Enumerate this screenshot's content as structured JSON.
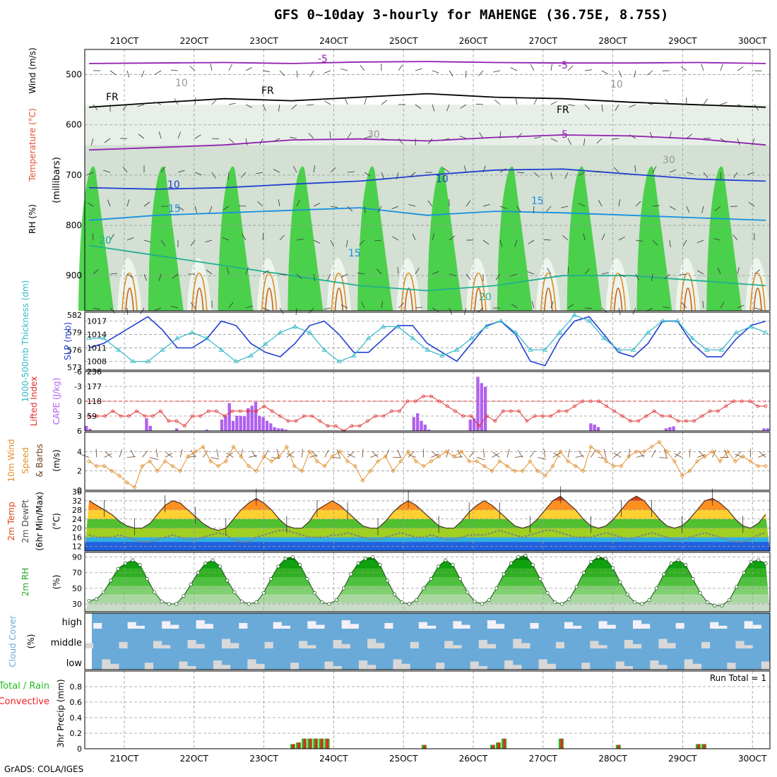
{
  "title": "GFS 0~10day 3-hourly for MAHENGE (36.75E, 8.75S)",
  "credit": "GrADS: COLA/IGES",
  "run_total_label": "Run Total = 1",
  "colors": {
    "rh_green": "#33cc33",
    "rh_light": "#c8d8c8",
    "slp": "#1f3fd0",
    "thickness": "#30b8c8",
    "lifted": "#e03030",
    "cape": "#b060f0",
    "wind": "#e09030",
    "temp_fill": "#ff8c00",
    "rh2m": "#22aa22",
    "cloud": "#6aaad8",
    "precip_total": "#22bb22",
    "precip_conv": "#ee2222"
  },
  "chart_data": [
    {
      "type": "heatmap",
      "name": "upper-air",
      "x_ticks": [
        "21OCT",
        "22OCT",
        "23OCT",
        "24OCT",
        "25OCT",
        "26OCT",
        "27OCT",
        "28OCT",
        "29OCT",
        "30OCT"
      ],
      "ylabel": "(millibars)",
      "side_labels": [
        "RH (%)",
        "Temperature (°C)",
        "Wind (m/s)"
      ],
      "ylim": [
        970,
        450
      ],
      "y_ticks": [
        500,
        600,
        700,
        800,
        900
      ],
      "contour_labels": [
        "-5",
        "-5",
        "FR",
        "FR",
        "FR",
        "-5",
        "10",
        "10",
        "15",
        "15",
        "20",
        "15",
        "10",
        "10",
        "30",
        "30",
        "20"
      ],
      "isotherms": [
        {
          "label": "-5",
          "p": [
            478,
            477,
            476,
            478,
            475,
            474,
            476,
            477,
            477,
            476,
            478
          ]
        },
        {
          "label": "FR",
          "p": [
            565,
            556,
            548,
            552,
            545,
            538,
            545,
            548,
            555,
            560,
            565
          ]
        },
        {
          "label": "-5",
          "p": [
            650,
            645,
            640,
            630,
            628,
            632,
            625,
            620,
            622,
            628,
            640
          ]
        },
        {
          "label": "10",
          "p": [
            725,
            728,
            725,
            718,
            712,
            700,
            690,
            688,
            698,
            708,
            712
          ]
        },
        {
          "label": "15",
          "p": [
            790,
            780,
            775,
            770,
            765,
            780,
            772,
            775,
            780,
            785,
            790
          ]
        },
        {
          "label": "20",
          "p": [
            840,
            860,
            880,
            900,
            920,
            930,
            920,
            900,
            900,
            910,
            920
          ]
        }
      ]
    },
    {
      "type": "line",
      "name": "thickness-slp",
      "side_labels": [
        "1000-500mb Thickness (dm)",
        "SLP (mb)"
      ],
      "left_ticks": [
        573,
        576,
        579,
        582
      ],
      "right_ticks": [
        1008,
        1011,
        1014,
        1017
      ],
      "left_ylim": [
        573,
        582
      ],
      "right_ylim": [
        1006,
        1019
      ],
      "series": [
        {
          "axis": "right",
          "values": [
            1011,
            1012,
            1014,
            1016,
            1018,
            1015,
            1011,
            1011,
            1013,
            1017,
            1016,
            1012,
            1010,
            1009,
            1012,
            1016,
            1017,
            1014,
            1010,
            1010,
            1013,
            1016,
            1016,
            1012,
            1010,
            1008,
            1012,
            1016,
            1017,
            1014,
            1008,
            1007,
            1013,
            1017,
            1018,
            1014,
            1010,
            1009,
            1012,
            1017,
            1017,
            1012,
            1009,
            1009,
            1013,
            1016,
            1017
          ]
        },
        {
          "axis": "left",
          "values": [
            578,
            578,
            576,
            574,
            574,
            576,
            578,
            579,
            578,
            576,
            574,
            575,
            577,
            579,
            580,
            579,
            576,
            574,
            575,
            578,
            580,
            580,
            578,
            576,
            575,
            576,
            578,
            580,
            581,
            579,
            576,
            576,
            579,
            582,
            581,
            578,
            576,
            576,
            579,
            581,
            581,
            578,
            576,
            576,
            579,
            580,
            579
          ]
        }
      ]
    },
    {
      "type": "bar",
      "name": "lifted-cape",
      "side_labels": [
        "Lifted Index",
        "CAPE (J/kg)"
      ],
      "left_ticks": [
        -6,
        -3,
        0,
        3,
        6
      ],
      "right_ticks": [
        59,
        118,
        177,
        236
      ],
      "left_ylim": [
        6,
        -6
      ],
      "right_ylim": [
        0,
        236
      ],
      "cape": [
        20,
        8,
        0,
        0,
        0,
        0,
        0,
        0,
        0,
        0,
        0,
        0,
        0,
        0,
        0,
        0,
        50,
        20,
        0,
        0,
        0,
        0,
        0,
        0,
        10,
        0,
        0,
        0,
        0,
        0,
        0,
        0,
        5,
        0,
        0,
        0,
        45,
        60,
        110,
        40,
        60,
        60,
        58,
        90,
        100,
        115,
        60,
        55,
        40,
        30,
        15,
        10,
        10,
        5,
        0,
        0,
        0,
        0,
        0,
        0,
        0,
        0,
        0,
        0,
        0,
        0,
        0,
        0,
        0,
        0,
        0,
        0,
        0,
        0,
        0,
        0,
        0,
        0,
        0,
        0,
        0,
        0,
        0,
        0,
        0,
        0,
        0,
        55,
        70,
        40,
        25,
        5,
        0,
        0,
        0,
        0,
        0,
        0,
        0,
        0,
        0,
        0,
        45,
        50,
        215,
        190,
        175,
        0,
        0,
        0,
        0,
        0,
        0,
        0,
        0,
        0,
        0,
        0,
        0,
        0,
        0,
        0,
        0,
        0,
        0,
        0,
        0,
        0,
        0,
        0,
        0,
        0,
        0,
        0,
        30,
        25,
        15,
        0,
        0,
        0,
        0,
        0,
        0,
        0,
        0,
        0,
        0,
        0,
        0,
        0,
        0,
        0,
        0,
        0,
        10,
        15,
        18,
        0,
        0,
        0,
        0,
        0,
        0,
        0,
        0,
        0,
        0,
        0,
        0,
        0,
        0,
        0,
        0,
        0,
        0,
        0,
        0,
        0,
        0,
        0,
        10,
        10
      ],
      "lifted": [
        3,
        3,
        3,
        2,
        3,
        3,
        2,
        3,
        3,
        2,
        4,
        4,
        5,
        3,
        3,
        2,
        2,
        3,
        2,
        2,
        2,
        2,
        1,
        2,
        3,
        4,
        4,
        3,
        3,
        4,
        5,
        5,
        6,
        5,
        5,
        4,
        3,
        3,
        2,
        2,
        0,
        0,
        -1,
        -1,
        0,
        1,
        2,
        3,
        3,
        5,
        3,
        4,
        2,
        2,
        2,
        4,
        3,
        3,
        3,
        2,
        2,
        1,
        0,
        0,
        0,
        1,
        2,
        3,
        4,
        4,
        3,
        2,
        3,
        3,
        4,
        4,
        4,
        3,
        2,
        2,
        1,
        0,
        0,
        0,
        1,
        1
      ]
    },
    {
      "type": "line",
      "name": "wind-10m",
      "side_labels": [
        "10m Wind",
        "Speed",
        "& Barbs"
      ],
      "ylabel": "(m/s)",
      "y_ticks": [
        0,
        2,
        4
      ],
      "ylim": [
        0,
        6
      ],
      "values": [
        3,
        2.5,
        2.5,
        2,
        1.5,
        0.8,
        0.3,
        2.5,
        3,
        2,
        3,
        2.5,
        2,
        3.5,
        4,
        4.5,
        3,
        2.5,
        3,
        4.5,
        3.5,
        2.5,
        2,
        3.5,
        3,
        3.5,
        4.5,
        2.5,
        2,
        4,
        3,
        2.5,
        3.5,
        4,
        3,
        2.5,
        1,
        2,
        3,
        3.5,
        2,
        3,
        4,
        3,
        2.5,
        3,
        3.5,
        4,
        3.5,
        4,
        3,
        3,
        2.5,
        2,
        3,
        2.5,
        2,
        2,
        3,
        2,
        1.5,
        2.5,
        4,
        3,
        2.5,
        2,
        4.5,
        4,
        3,
        2.5,
        2.5,
        3.5,
        4,
        4,
        4.5,
        5,
        4,
        3,
        1.5,
        2,
        3,
        3.5,
        4,
        3,
        4,
        3,
        3.5,
        3,
        2.5,
        2.5
      ]
    },
    {
      "type": "area",
      "name": "temp-2m",
      "side_labels": [
        "2m Temp",
        "2m DewPt",
        "(6hr Min/Max)"
      ],
      "ylabel": "(°C)",
      "y_ticks": [
        12,
        16,
        20,
        24,
        28,
        32,
        36
      ],
      "ylim": [
        10,
        36
      ],
      "temp": [
        32,
        30,
        28,
        26,
        23,
        21,
        20,
        20,
        22,
        26,
        30,
        32,
        31,
        28,
        25,
        22,
        20,
        19,
        20,
        24,
        28,
        31,
        33,
        31,
        28,
        24,
        21,
        20,
        20,
        23,
        28,
        30,
        32,
        30,
        27,
        24,
        21,
        20,
        20,
        23,
        27,
        30,
        32,
        30,
        27,
        24,
        21,
        20,
        20,
        23,
        27,
        30,
        32,
        30,
        27,
        24,
        21,
        20,
        21,
        24,
        28,
        32,
        34,
        31,
        28,
        24,
        21,
        20,
        21,
        24,
        28,
        32,
        34,
        32,
        28,
        24,
        21,
        20,
        21,
        24,
        28,
        32,
        33,
        31,
        28,
        24,
        21,
        20,
        22,
        26
      ],
      "dewpt": [
        17,
        16,
        16,
        16,
        17,
        16,
        15,
        14,
        14,
        15,
        16,
        17,
        16,
        15,
        15,
        16,
        17,
        18,
        17,
        15,
        14,
        14,
        16,
        17,
        18,
        19,
        19,
        18,
        17,
        16,
        16,
        16,
        17,
        17,
        18,
        17,
        16,
        15,
        15,
        16,
        17,
        18,
        17,
        16,
        16,
        17,
        16,
        15,
        15,
        16,
        17,
        17,
        17,
        18,
        19,
        18,
        17,
        16,
        17,
        18,
        19,
        19,
        18,
        17,
        16,
        16,
        16,
        17,
        18,
        17,
        16,
        15,
        16,
        17,
        18,
        17,
        16,
        15,
        15,
        16,
        17,
        18,
        17,
        16,
        15,
        14,
        14,
        15,
        17,
        18
      ]
    },
    {
      "type": "area",
      "name": "rh-2m",
      "side_labels": [
        "2m RH"
      ],
      "ylabel": "(%)",
      "y_ticks": [
        30,
        50,
        70,
        90
      ],
      "ylim": [
        20,
        96
      ],
      "values": [
        34,
        36,
        45,
        60,
        75,
        82,
        86,
        80,
        62,
        45,
        33,
        30,
        30,
        40,
        55,
        70,
        82,
        86,
        78,
        60,
        45,
        33,
        30,
        32,
        44,
        62,
        78,
        88,
        90,
        80,
        62,
        44,
        32,
        30,
        35,
        50,
        68,
        82,
        88,
        90,
        80,
        60,
        42,
        32,
        30,
        35,
        50,
        62,
        78,
        86,
        80,
        62,
        45,
        33,
        30,
        35,
        50,
        68,
        82,
        90,
        92,
        80,
        62,
        44,
        32,
        30,
        36,
        52,
        70,
        84,
        90,
        88,
        76,
        58,
        42,
        32,
        30,
        35,
        50,
        68,
        82,
        86,
        80,
        62,
        44,
        32,
        28,
        28,
        35,
        52,
        70,
        84,
        86,
        82
      ]
    },
    {
      "type": "bar",
      "name": "cloud-cover",
      "side_labels": [
        "Cloud Cover"
      ],
      "ylabel": "(%)",
      "row_labels": [
        "high",
        "middle",
        "low"
      ]
    },
    {
      "type": "bar",
      "name": "precip",
      "side_labels": [
        "Total / Rain",
        "Convective"
      ],
      "ylabel": "3hr Precip (mm)",
      "y_ticks": [
        0,
        0.2,
        0.4,
        0.6,
        0.8
      ],
      "ylim": [
        0,
        1
      ],
      "x_ticks": [
        "21OCT",
        "22OCT",
        "23OCT",
        "24OCT",
        "25OCT",
        "26OCT",
        "27OCT",
        "28OCT",
        "29OCT",
        "30OCT"
      ],
      "bars": [
        {
          "i": 36,
          "v": 0.06
        },
        {
          "i": 37,
          "v": 0.08
        },
        {
          "i": 38,
          "v": 0.13
        },
        {
          "i": 39,
          "v": 0.13
        },
        {
          "i": 40,
          "v": 0.13
        },
        {
          "i": 41,
          "v": 0.13
        },
        {
          "i": 42,
          "v": 0.13
        },
        {
          "i": 59,
          "v": 0.05
        },
        {
          "i": 71,
          "v": 0.05
        },
        {
          "i": 72,
          "v": 0.08
        },
        {
          "i": 73,
          "v": 0.13
        },
        {
          "i": 83,
          "v": 0.13
        },
        {
          "i": 93,
          "v": 0.05
        },
        {
          "i": 107,
          "v": 0.06
        },
        {
          "i": 108,
          "v": 0.06
        }
      ]
    }
  ]
}
